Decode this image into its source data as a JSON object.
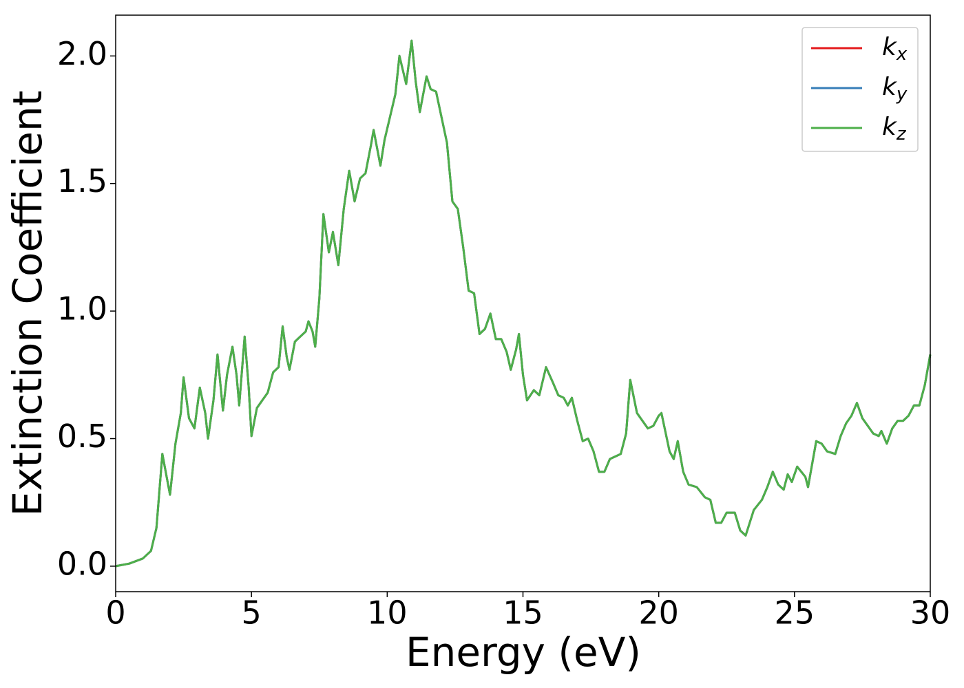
{
  "chart_data": {
    "type": "line",
    "xlabel": "Energy (eV)",
    "ylabel": "Extinction Coefficient",
    "x": [
      0,
      0.5,
      1.0,
      1.3,
      1.5,
      1.72,
      2.0,
      2.2,
      2.4,
      2.5,
      2.7,
      2.9,
      3.1,
      3.3,
      3.4,
      3.6,
      3.75,
      3.95,
      4.1,
      4.3,
      4.45,
      4.55,
      4.75,
      4.9,
      5.0,
      5.2,
      5.4,
      5.6,
      5.8,
      6.0,
      6.15,
      6.3,
      6.4,
      6.6,
      6.8,
      7.0,
      7.1,
      7.25,
      7.35,
      7.5,
      7.65,
      7.85,
      8.0,
      8.2,
      8.4,
      8.6,
      8.8,
      9.0,
      9.2,
      9.4,
      9.5,
      9.75,
      9.9,
      10.1,
      10.3,
      10.45,
      10.7,
      10.9,
      11.05,
      11.2,
      11.45,
      11.6,
      11.8,
      12.0,
      12.2,
      12.4,
      12.6,
      12.8,
      13.0,
      13.2,
      13.4,
      13.6,
      13.8,
      14.0,
      14.2,
      14.4,
      14.55,
      14.75,
      14.85,
      15.0,
      15.15,
      15.4,
      15.6,
      15.85,
      16.1,
      16.3,
      16.5,
      16.65,
      16.8,
      17.0,
      17.2,
      17.4,
      17.6,
      17.8,
      18.0,
      18.2,
      18.4,
      18.6,
      18.8,
      18.95,
      19.2,
      19.4,
      19.6,
      19.8,
      20.0,
      20.1,
      20.4,
      20.55,
      20.7,
      20.9,
      21.1,
      21.4,
      21.7,
      21.9,
      22.1,
      22.3,
      22.5,
      22.8,
      23.0,
      23.2,
      23.5,
      23.8,
      24.0,
      24.2,
      24.4,
      24.6,
      24.75,
      24.9,
      25.1,
      25.4,
      25.5,
      25.8,
      26.0,
      26.2,
      26.5,
      26.7,
      26.9,
      27.1,
      27.3,
      27.5,
      27.7,
      27.9,
      28.1,
      28.2,
      28.4,
      28.6,
      28.8,
      29.0,
      29.2,
      29.4,
      29.6,
      29.8,
      30.0
    ],
    "series": [
      {
        "name": "kx",
        "color": "#e41a1c",
        "values": [
          0,
          0.01,
          0.03,
          0.06,
          0.15,
          0.44,
          0.28,
          0.48,
          0.6,
          0.74,
          0.58,
          0.54,
          0.7,
          0.6,
          0.5,
          0.65,
          0.83,
          0.61,
          0.75,
          0.86,
          0.75,
          0.63,
          0.9,
          0.7,
          0.51,
          0.62,
          0.65,
          0.68,
          0.76,
          0.78,
          0.94,
          0.82,
          0.77,
          0.88,
          0.9,
          0.92,
          0.96,
          0.92,
          0.86,
          1.05,
          1.38,
          1.23,
          1.31,
          1.18,
          1.4,
          1.55,
          1.43,
          1.52,
          1.54,
          1.65,
          1.71,
          1.57,
          1.67,
          1.76,
          1.85,
          2.0,
          1.89,
          2.06,
          1.9,
          1.78,
          1.92,
          1.87,
          1.86,
          1.76,
          1.66,
          1.43,
          1.4,
          1.25,
          1.08,
          1.07,
          0.91,
          0.93,
          0.99,
          0.89,
          0.89,
          0.84,
          0.77,
          0.85,
          0.91,
          0.75,
          0.65,
          0.69,
          0.67,
          0.78,
          0.72,
          0.67,
          0.66,
          0.63,
          0.66,
          0.57,
          0.49,
          0.5,
          0.45,
          0.37,
          0.37,
          0.42,
          0.43,
          0.44,
          0.52,
          0.73,
          0.6,
          0.57,
          0.54,
          0.55,
          0.59,
          0.6,
          0.45,
          0.42,
          0.49,
          0.37,
          0.32,
          0.31,
          0.27,
          0.26,
          0.17,
          0.17,
          0.21,
          0.21,
          0.14,
          0.12,
          0.22,
          0.26,
          0.31,
          0.37,
          0.32,
          0.3,
          0.36,
          0.33,
          0.39,
          0.35,
          0.31,
          0.49,
          0.48,
          0.45,
          0.44,
          0.51,
          0.56,
          0.59,
          0.64,
          0.58,
          0.55,
          0.52,
          0.51,
          0.53,
          0.48,
          0.54,
          0.57,
          0.57,
          0.59,
          0.63,
          0.63,
          0.71,
          0.83
        ]
      },
      {
        "name": "ky",
        "color": "#377eb8",
        "values": [
          0,
          0.01,
          0.03,
          0.06,
          0.15,
          0.44,
          0.28,
          0.48,
          0.6,
          0.74,
          0.58,
          0.54,
          0.7,
          0.6,
          0.5,
          0.65,
          0.83,
          0.61,
          0.75,
          0.86,
          0.75,
          0.63,
          0.9,
          0.7,
          0.51,
          0.62,
          0.65,
          0.68,
          0.76,
          0.78,
          0.94,
          0.82,
          0.77,
          0.88,
          0.9,
          0.92,
          0.96,
          0.92,
          0.86,
          1.05,
          1.38,
          1.23,
          1.31,
          1.18,
          1.4,
          1.55,
          1.43,
          1.52,
          1.54,
          1.65,
          1.71,
          1.57,
          1.67,
          1.76,
          1.85,
          2.0,
          1.89,
          2.06,
          1.9,
          1.78,
          1.92,
          1.87,
          1.86,
          1.76,
          1.66,
          1.43,
          1.4,
          1.25,
          1.08,
          1.07,
          0.91,
          0.93,
          0.99,
          0.89,
          0.89,
          0.84,
          0.77,
          0.85,
          0.91,
          0.75,
          0.65,
          0.69,
          0.67,
          0.78,
          0.72,
          0.67,
          0.66,
          0.63,
          0.66,
          0.57,
          0.49,
          0.5,
          0.45,
          0.37,
          0.37,
          0.42,
          0.43,
          0.44,
          0.52,
          0.73,
          0.6,
          0.57,
          0.54,
          0.55,
          0.59,
          0.6,
          0.45,
          0.42,
          0.49,
          0.37,
          0.32,
          0.31,
          0.27,
          0.26,
          0.17,
          0.17,
          0.21,
          0.21,
          0.14,
          0.12,
          0.22,
          0.26,
          0.31,
          0.37,
          0.32,
          0.3,
          0.36,
          0.33,
          0.39,
          0.35,
          0.31,
          0.49,
          0.48,
          0.45,
          0.44,
          0.51,
          0.56,
          0.59,
          0.64,
          0.58,
          0.55,
          0.52,
          0.51,
          0.53,
          0.48,
          0.54,
          0.57,
          0.57,
          0.59,
          0.63,
          0.63,
          0.71,
          0.83
        ]
      },
      {
        "name": "kz",
        "color": "#4daf4a",
        "values": [
          0,
          0.01,
          0.03,
          0.06,
          0.15,
          0.44,
          0.28,
          0.48,
          0.6,
          0.74,
          0.58,
          0.54,
          0.7,
          0.6,
          0.5,
          0.65,
          0.83,
          0.61,
          0.75,
          0.86,
          0.75,
          0.63,
          0.9,
          0.7,
          0.51,
          0.62,
          0.65,
          0.68,
          0.76,
          0.78,
          0.94,
          0.82,
          0.77,
          0.88,
          0.9,
          0.92,
          0.96,
          0.92,
          0.86,
          1.05,
          1.38,
          1.23,
          1.31,
          1.18,
          1.4,
          1.55,
          1.43,
          1.52,
          1.54,
          1.65,
          1.71,
          1.57,
          1.67,
          1.76,
          1.85,
          2.0,
          1.89,
          2.06,
          1.9,
          1.78,
          1.92,
          1.87,
          1.86,
          1.76,
          1.66,
          1.43,
          1.4,
          1.25,
          1.08,
          1.07,
          0.91,
          0.93,
          0.99,
          0.89,
          0.89,
          0.84,
          0.77,
          0.85,
          0.91,
          0.75,
          0.65,
          0.69,
          0.67,
          0.78,
          0.72,
          0.67,
          0.66,
          0.63,
          0.66,
          0.57,
          0.49,
          0.5,
          0.45,
          0.37,
          0.37,
          0.42,
          0.43,
          0.44,
          0.52,
          0.73,
          0.6,
          0.57,
          0.54,
          0.55,
          0.59,
          0.6,
          0.45,
          0.42,
          0.49,
          0.37,
          0.32,
          0.31,
          0.27,
          0.26,
          0.17,
          0.17,
          0.21,
          0.21,
          0.14,
          0.12,
          0.22,
          0.26,
          0.31,
          0.37,
          0.32,
          0.3,
          0.36,
          0.33,
          0.39,
          0.35,
          0.31,
          0.49,
          0.48,
          0.45,
          0.44,
          0.51,
          0.56,
          0.59,
          0.64,
          0.58,
          0.55,
          0.52,
          0.51,
          0.53,
          0.48,
          0.54,
          0.57,
          0.57,
          0.59,
          0.63,
          0.63,
          0.71,
          0.83
        ]
      }
    ],
    "xlim": [
      0,
      30
    ],
    "xticks": [
      0,
      5,
      10,
      15,
      20,
      25,
      30
    ],
    "ylim": [
      -0.1,
      2.16
    ],
    "yticks": [
      {
        "value": 0,
        "label": "0.0"
      },
      0.5,
      {
        "value": 1,
        "label": "1.0"
      },
      1.5,
      {
        "value": 2,
        "label": "2.0"
      }
    ],
    "grid": false,
    "legend": "upper right"
  }
}
